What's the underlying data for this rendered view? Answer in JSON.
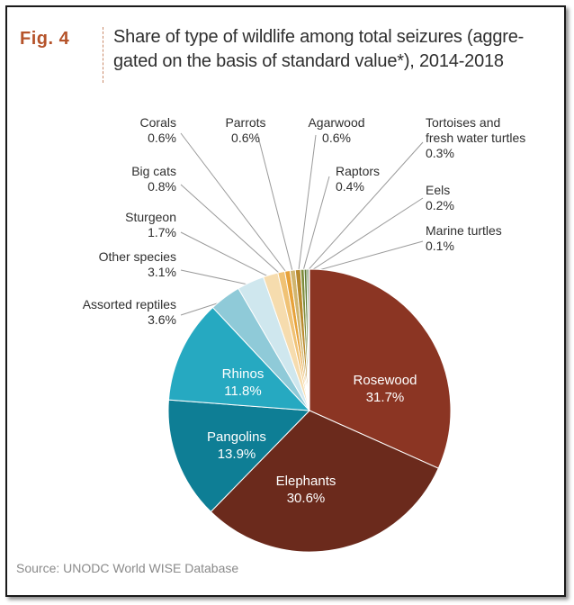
{
  "figure": {
    "label": "Fig. 4",
    "title": "Share of type of wildlife among total seizures (aggre-gated on the basis of standard value*), 2014-2018",
    "source": "Source: UNODC World WISE Database"
  },
  "chart_data": {
    "type": "pie",
    "unit": "%",
    "slices": [
      {
        "name": "Rosewood",
        "value": 31.7,
        "display": "31.7%",
        "color": "#8b3523",
        "label_inside": true
      },
      {
        "name": "Elephants",
        "value": 30.6,
        "display": "30.6%",
        "color": "#6b2a1c",
        "label_inside": true
      },
      {
        "name": "Pangolins",
        "value": 13.9,
        "display": "13.9%",
        "color": "#0e7e95",
        "label_inside": true
      },
      {
        "name": "Rhinos",
        "value": 11.8,
        "display": "11.8%",
        "color": "#26a9c1",
        "label_inside": true
      },
      {
        "name": "Assorted reptiles",
        "value": 3.6,
        "display": "3.6%",
        "color": "#8fcad8",
        "label_inside": false
      },
      {
        "name": "Other species",
        "value": 3.1,
        "display": "3.1%",
        "color": "#cfe7ee",
        "label_inside": false
      },
      {
        "name": "Sturgeon",
        "value": 1.7,
        "display": "1.7%",
        "color": "#f6dcae",
        "label_inside": false
      },
      {
        "name": "Big cats",
        "value": 0.8,
        "display": "0.8%",
        "color": "#f0c275",
        "label_inside": false
      },
      {
        "name": "Corals",
        "value": 0.6,
        "display": "0.6%",
        "color": "#e7a23a",
        "label_inside": false
      },
      {
        "name": "Parrots",
        "value": 0.6,
        "display": "0.6%",
        "color": "#d1b56e",
        "label_inside": false
      },
      {
        "name": "Agarwood",
        "value": 0.6,
        "display": "0.6%",
        "color": "#b88a2e",
        "label_inside": false
      },
      {
        "name": "Raptors",
        "value": 0.4,
        "display": "0.4%",
        "color": "#7e8b3a",
        "label_inside": false
      },
      {
        "name": "Tortoises and fresh water turtles",
        "value": 0.3,
        "display": "0.3%",
        "color": "#5e7a33",
        "label_inside": false
      },
      {
        "name": "Eels",
        "value": 0.2,
        "display": "0.2%",
        "color": "#3d5e2a",
        "label_inside": false
      },
      {
        "name": "Marine turtles",
        "value": 0.1,
        "display": "0.1%",
        "color": "#2c4a22",
        "label_inside": false
      }
    ]
  }
}
